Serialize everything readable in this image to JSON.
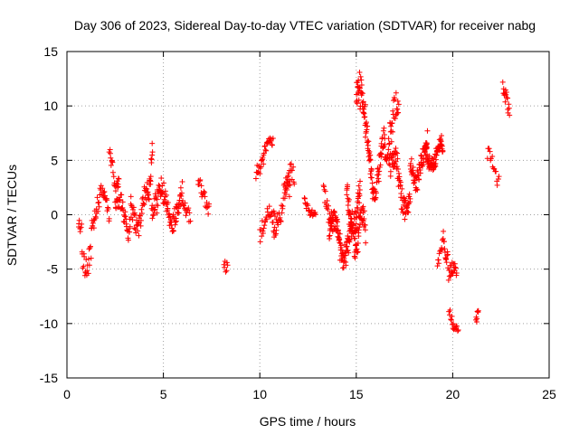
{
  "chart_data": {
    "type": "scatter",
    "title": "Day 306 of 2023, Sidereal Day-to-day VTEC variation (SDTVAR) for receiver nabg",
    "xlabel": "GPS time / hours",
    "ylabel": "SDTVAR / TECUs",
    "xlim": [
      0,
      25
    ],
    "ylim": [
      -15,
      15
    ],
    "xticks": [
      "0",
      "5",
      "10",
      "15",
      "20",
      "25"
    ],
    "yticks": [
      "15",
      "10",
      "5",
      "0",
      "-5",
      "-10",
      "-15"
    ],
    "grid": true,
    "marker": "+",
    "series_color": "#ff0000",
    "segments": [
      {
        "t0": 0.6,
        "t1": 1.3,
        "base": -2.5,
        "amp": 3.0,
        "freq": 6,
        "noise": 1.6,
        "step": 0.025
      },
      {
        "t0": 1.3,
        "t1": 2.2,
        "base": 0.5,
        "amp": 1.5,
        "freq": 5,
        "noise": 1.2,
        "step": 0.025
      },
      {
        "t0": 2.2,
        "t1": 2.7,
        "base": 4.5,
        "amp": 1.8,
        "freq": 7,
        "noise": 1.0,
        "step": 0.025
      },
      {
        "t0": 2.5,
        "t1": 3.3,
        "base": 0.0,
        "amp": 1.5,
        "freq": 6,
        "noise": 1.3,
        "step": 0.02
      },
      {
        "t0": 3.3,
        "t1": 4.2,
        "base": 1.0,
        "amp": 1.8,
        "freq": 5,
        "noise": 1.4,
        "step": 0.02
      },
      {
        "t0": 4.2,
        "t1": 4.45,
        "base": 5.0,
        "amp": 3.5,
        "freq": 8,
        "noise": 1.0,
        "step": 0.015
      },
      {
        "t0": 4.4,
        "t1": 6.0,
        "base": 0.8,
        "amp": 1.5,
        "freq": 5,
        "noise": 1.4,
        "step": 0.018
      },
      {
        "t0": 6.0,
        "t1": 6.4,
        "base": 0.5,
        "amp": 1.0,
        "freq": 4,
        "noise": 1.0,
        "step": 0.03
      },
      {
        "t0": 6.8,
        "t1": 7.4,
        "base": 2.0,
        "amp": 2.0,
        "freq": 3,
        "noise": 0.9,
        "step": 0.03
      },
      {
        "t0": 8.15,
        "t1": 8.35,
        "base": -2.0,
        "amp": 3.0,
        "freq": 5,
        "noise": 1.2,
        "step": 0.03
      },
      {
        "t0": 9.8,
        "t1": 10.7,
        "base": 5.5,
        "amp": 1.5,
        "freq": 4,
        "noise": 0.9,
        "step": 0.025
      },
      {
        "t0": 10.0,
        "t1": 10.8,
        "base": -1.0,
        "amp": 1.2,
        "freq": 4,
        "noise": 1.0,
        "step": 0.03
      },
      {
        "t0": 10.7,
        "t1": 11.6,
        "base": 0.5,
        "amp": 2.0,
        "freq": 4,
        "noise": 1.3,
        "step": 0.025
      },
      {
        "t0": 11.3,
        "t1": 11.8,
        "base": 2.5,
        "amp": 1.5,
        "freq": 5,
        "noise": 1.0,
        "step": 0.03
      },
      {
        "t0": 12.3,
        "t1": 12.9,
        "base": 1.2,
        "amp": 1.2,
        "freq": 5,
        "noise": 0.9,
        "step": 0.03
      },
      {
        "t0": 13.3,
        "t1": 13.8,
        "base": 2.0,
        "amp": 2.5,
        "freq": 4,
        "noise": 1.0,
        "step": 0.025
      },
      {
        "t0": 13.6,
        "t1": 14.8,
        "base": -2.2,
        "amp": 1.8,
        "freq": 6,
        "noise": 1.4,
        "step": 0.012
      },
      {
        "t0": 14.5,
        "t1": 15.2,
        "base": 2.0,
        "amp": 3.5,
        "freq": 5,
        "noise": 1.8,
        "step": 0.012
      },
      {
        "t0": 14.9,
        "t1": 15.5,
        "base": -2.0,
        "amp": 2.0,
        "freq": 7,
        "noise": 1.5,
        "step": 0.015
      },
      {
        "t0": 15.0,
        "t1": 15.8,
        "base": 7.5,
        "amp": 4.0,
        "freq": 4,
        "noise": 1.8,
        "step": 0.012
      },
      {
        "t0": 15.8,
        "t1": 16.5,
        "base": 4.5,
        "amp": 2.5,
        "freq": 5,
        "noise": 1.5,
        "step": 0.015
      },
      {
        "t0": 16.5,
        "t1": 17.2,
        "base": 7.0,
        "amp": 3.0,
        "freq": 4,
        "noise": 1.5,
        "step": 0.02
      },
      {
        "t0": 16.7,
        "t1": 17.8,
        "base": 3.0,
        "amp": 2.5,
        "freq": 5,
        "noise": 1.5,
        "step": 0.015
      },
      {
        "t0": 17.8,
        "t1": 18.7,
        "base": 5.0,
        "amp": 2.0,
        "freq": 5,
        "noise": 1.3,
        "step": 0.015
      },
      {
        "t0": 18.6,
        "t1": 19.5,
        "base": 5.5,
        "amp": 1.0,
        "freq": 6,
        "noise": 1.0,
        "step": 0.012
      },
      {
        "t0": 19.2,
        "t1": 19.5,
        "base": -3.0,
        "amp": 1.5,
        "freq": 5,
        "noise": 1.0,
        "step": 0.03
      },
      {
        "t0": 19.5,
        "t1": 20.2,
        "base": -1.5,
        "amp": 4.0,
        "freq": 3,
        "noise": 1.5,
        "step": 0.02
      },
      {
        "t0": 19.8,
        "t1": 20.3,
        "base": -9.5,
        "amp": 1.2,
        "freq": 5,
        "noise": 0.8,
        "step": 0.03
      },
      {
        "t0": 21.2,
        "t1": 21.35,
        "base": -9.0,
        "amp": 1.5,
        "freq": 4,
        "noise": 0.6,
        "step": 0.02
      },
      {
        "t0": 21.8,
        "t1": 22.4,
        "base": 4.0,
        "amp": 1.5,
        "freq": 4,
        "noise": 0.8,
        "step": 0.04
      },
      {
        "t0": 22.6,
        "t1": 22.95,
        "base": 9.5,
        "amp": 2.0,
        "freq": 4,
        "noise": 1.0,
        "step": 0.02
      }
    ],
    "seed": 306
  }
}
